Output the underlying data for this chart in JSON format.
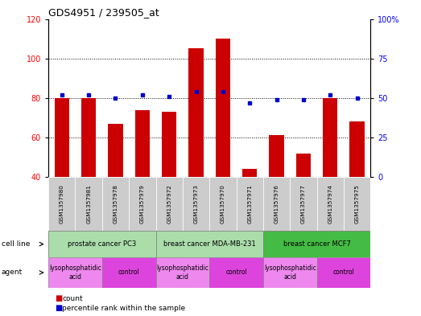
{
  "title": "GDS4951 / 239505_at",
  "samples": [
    "GSM1357980",
    "GSM1357981",
    "GSM1357978",
    "GSM1357979",
    "GSM1357972",
    "GSM1357973",
    "GSM1357970",
    "GSM1357971",
    "GSM1357976",
    "GSM1357977",
    "GSM1357974",
    "GSM1357975"
  ],
  "counts": [
    80,
    80,
    67,
    74,
    73,
    105,
    110,
    44,
    61,
    52,
    80,
    68
  ],
  "percentiles": [
    52,
    52,
    50,
    52,
    51,
    54,
    54,
    47,
    49,
    49,
    52,
    50
  ],
  "ylim_left": [
    40,
    120
  ],
  "ylim_right": [
    0,
    100
  ],
  "yticks_left": [
    40,
    60,
    80,
    100,
    120
  ],
  "yticks_right": [
    0,
    25,
    50,
    75,
    100
  ],
  "ytick_labels_right": [
    "0",
    "25",
    "50",
    "75",
    "100%"
  ],
  "bar_color": "#cc0000",
  "dot_color": "#0000cc",
  "cell_line_groups": [
    {
      "label": "prostate cancer PC3",
      "start": 0,
      "end": 3,
      "color": "#aaddaa"
    },
    {
      "label": "breast cancer MDA-MB-231",
      "start": 4,
      "end": 7,
      "color": "#aaddaa"
    },
    {
      "label": "breast cancer MCF7",
      "start": 8,
      "end": 11,
      "color": "#44bb44"
    }
  ],
  "agent_groups": [
    {
      "label": "lysophosphatidic\nacid",
      "start": 0,
      "end": 1,
      "color": "#ee88ee"
    },
    {
      "label": "control",
      "start": 2,
      "end": 3,
      "color": "#dd44dd"
    },
    {
      "label": "lysophosphatidic\nacid",
      "start": 4,
      "end": 5,
      "color": "#ee88ee"
    },
    {
      "label": "control",
      "start": 6,
      "end": 7,
      "color": "#dd44dd"
    },
    {
      "label": "lysophosphatidic\nacid",
      "start": 8,
      "end": 9,
      "color": "#ee88ee"
    },
    {
      "label": "control",
      "start": 10,
      "end": 11,
      "color": "#dd44dd"
    }
  ],
  "grid_lines": [
    60,
    80,
    100
  ],
  "sample_label_bg": "#cccccc",
  "cell_line_row_bg": "#aaddaa",
  "cell_line_label": "cell line",
  "agent_label": "agent",
  "legend_count_label": "count",
  "legend_pct_label": "percentile rank within the sample"
}
